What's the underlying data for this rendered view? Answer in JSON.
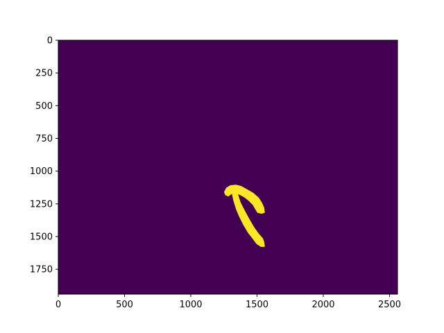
{
  "chart_data": {
    "type": "heatmap",
    "title": "",
    "xlabel": "",
    "ylabel": "",
    "colormap": "viridis",
    "image_width": 2560,
    "image_height": 1940,
    "xlim": [
      0,
      2560
    ],
    "ylim": [
      1940,
      0
    ],
    "x_ticks": [
      "0",
      "500",
      "1000",
      "1500",
      "2000",
      "2500"
    ],
    "x_tick_values": [
      0,
      500,
      1000,
      1500,
      2000,
      2500
    ],
    "y_ticks": [
      "0",
      "250",
      "500",
      "750",
      "1000",
      "1250",
      "1500",
      "1750"
    ],
    "y_tick_values": [
      0,
      250,
      500,
      750,
      1000,
      1250,
      1500,
      1750
    ],
    "background_value": 0,
    "mask_value": 1,
    "background_color": "#440154",
    "mask_color": "#fde725",
    "mask_regions": [
      {
        "name": "arc",
        "outline": [
          [
            1255,
            1160
          ],
          [
            1270,
            1130
          ],
          [
            1300,
            1112
          ],
          [
            1340,
            1108
          ],
          [
            1380,
            1118
          ],
          [
            1420,
            1140
          ],
          [
            1470,
            1170
          ],
          [
            1510,
            1205
          ],
          [
            1535,
            1245
          ],
          [
            1550,
            1280
          ],
          [
            1555,
            1315
          ],
          [
            1535,
            1322
          ],
          [
            1505,
            1315
          ],
          [
            1490,
            1290
          ],
          [
            1470,
            1255
          ],
          [
            1440,
            1225
          ],
          [
            1410,
            1200
          ],
          [
            1375,
            1180
          ],
          [
            1340,
            1165
          ],
          [
            1305,
            1172
          ],
          [
            1282,
            1190
          ],
          [
            1262,
            1180
          ]
        ]
      },
      {
        "name": "stroke",
        "outline": [
          [
            1310,
            1150
          ],
          [
            1332,
            1140
          ],
          [
            1352,
            1175
          ],
          [
            1372,
            1240
          ],
          [
            1405,
            1305
          ],
          [
            1440,
            1370
          ],
          [
            1475,
            1430
          ],
          [
            1510,
            1480
          ],
          [
            1540,
            1515
          ],
          [
            1550,
            1540
          ],
          [
            1555,
            1575
          ],
          [
            1530,
            1575
          ],
          [
            1500,
            1555
          ],
          [
            1470,
            1515
          ],
          [
            1435,
            1470
          ],
          [
            1400,
            1410
          ],
          [
            1370,
            1350
          ],
          [
            1345,
            1290
          ],
          [
            1325,
            1225
          ]
        ]
      }
    ],
    "grid": false
  }
}
